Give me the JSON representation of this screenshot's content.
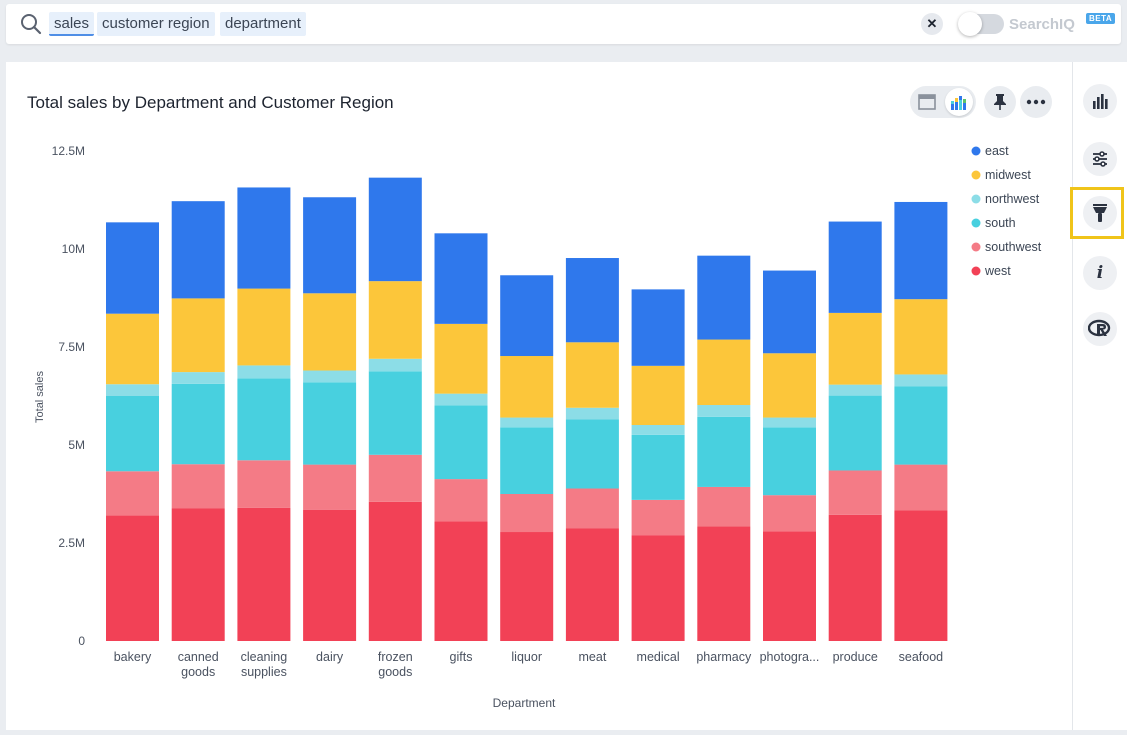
{
  "search": {
    "tokens": [
      "sales",
      "customer region",
      "department"
    ],
    "clear_icon": "close-icon",
    "searchiq_label": "SearchIQ",
    "beta_label": "BETA"
  },
  "colors": {
    "east": "#2f78ec",
    "midwest": "#fcc63a",
    "northwest": "#8cdde7",
    "south": "#48d0df",
    "southwest": "#f47b86",
    "west": "#f24156",
    "highlight": "#f0c419"
  },
  "toolbar": {
    "table_icon": "table-view-icon",
    "chart_icon": "chart-view-icon",
    "pin_icon": "pin-icon",
    "more_icon": "more-options-icon"
  },
  "side_panel": {
    "icons": [
      "bar-chart-icon",
      "settings-sliders-icon",
      "brush-icon",
      "info-icon",
      "r-analysis-icon"
    ]
  },
  "chart_data": {
    "type": "bar",
    "stacked": true,
    "title": "Total sales by Department and Customer Region",
    "xlabel": "Department",
    "ylabel": "Total sales",
    "ylim": [
      0,
      12500000
    ],
    "yticks": [
      0,
      2500000,
      5000000,
      7500000,
      10000000,
      12500000
    ],
    "ytick_labels": [
      "0",
      "2.5M",
      "5M",
      "7.5M",
      "10M",
      "12.5M"
    ],
    "grid": false,
    "legend_position": "right",
    "categories": [
      "bakery",
      "canned goods",
      "cleaning supplies",
      "dairy",
      "frozen goods",
      "gifts",
      "liquor",
      "meat",
      "medical",
      "pharmacy",
      "photogra...",
      "produce",
      "seafood"
    ],
    "series": [
      {
        "name": "west",
        "values": [
          3200000,
          3380000,
          3400000,
          3350000,
          3550000,
          3050000,
          2780000,
          2870000,
          2700000,
          2920000,
          2800000,
          3220000,
          3330000
        ]
      },
      {
        "name": "southwest",
        "values": [
          1130000,
          1130000,
          1210000,
          1150000,
          1200000,
          1080000,
          970000,
          1020000,
          900000,
          1010000,
          920000,
          1130000,
          1170000
        ]
      },
      {
        "name": "south",
        "values": [
          1920000,
          2050000,
          2090000,
          2100000,
          2130000,
          1880000,
          1700000,
          1760000,
          1660000,
          1790000,
          1730000,
          1910000,
          2000000
        ]
      },
      {
        "name": "northwest",
        "values": [
          300000,
          300000,
          330000,
          300000,
          320000,
          300000,
          250000,
          300000,
          250000,
          300000,
          250000,
          280000,
          300000
        ]
      },
      {
        "name": "midwest",
        "values": [
          1800000,
          1880000,
          1960000,
          1970000,
          1980000,
          1780000,
          1570000,
          1670000,
          1510000,
          1670000,
          1640000,
          1830000,
          1920000
        ]
      },
      {
        "name": "east",
        "values": [
          2330000,
          2480000,
          2580000,
          2450000,
          2640000,
          2310000,
          2060000,
          2150000,
          1950000,
          2140000,
          2110000,
          2330000,
          2480000
        ]
      }
    ],
    "legend": [
      "east",
      "midwest",
      "northwest",
      "south",
      "southwest",
      "west"
    ]
  }
}
